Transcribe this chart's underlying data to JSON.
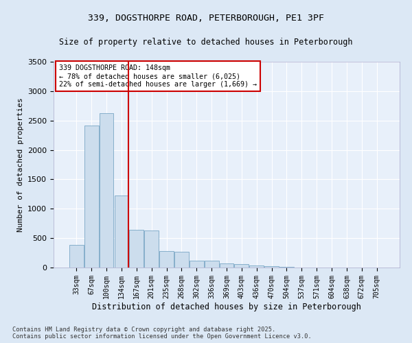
{
  "title_line1": "339, DOGSTHORPE ROAD, PETERBOROUGH, PE1 3PF",
  "title_line2": "Size of property relative to detached houses in Peterborough",
  "xlabel": "Distribution of detached houses by size in Peterborough",
  "ylabel": "Number of detached properties",
  "footer_line1": "Contains HM Land Registry data © Crown copyright and database right 2025.",
  "footer_line2": "Contains public sector information licensed under the Open Government Licence v3.0.",
  "annotation_title": "339 DOGSTHORPE ROAD: 148sqm",
  "annotation_line1": "← 78% of detached houses are smaller (6,025)",
  "annotation_line2": "22% of semi-detached houses are larger (1,669) →",
  "bar_color": "#ccdded",
  "bar_edge_color": "#6699bb",
  "vline_color": "#cc0000",
  "annotation_box_color": "#cc0000",
  "fig_bg_color": "#dce8f5",
  "axes_bg_color": "#e8f0fa",
  "grid_color": "#ffffff",
  "categories": [
    "33sqm",
    "67sqm",
    "100sqm",
    "134sqm",
    "167sqm",
    "201sqm",
    "235sqm",
    "268sqm",
    "302sqm",
    "336sqm",
    "369sqm",
    "403sqm",
    "436sqm",
    "470sqm",
    "504sqm",
    "537sqm",
    "571sqm",
    "604sqm",
    "638sqm",
    "672sqm",
    "705sqm"
  ],
  "values": [
    390,
    2420,
    2620,
    1230,
    640,
    630,
    280,
    270,
    115,
    115,
    75,
    55,
    35,
    25,
    10,
    5,
    3,
    2,
    1,
    1,
    0
  ],
  "ylim": [
    0,
    3500
  ],
  "yticks": [
    0,
    500,
    1000,
    1500,
    2000,
    2500,
    3000,
    3500
  ],
  "vline_x": 3.47,
  "figsize": [
    6.0,
    5.0
  ],
  "dpi": 100
}
